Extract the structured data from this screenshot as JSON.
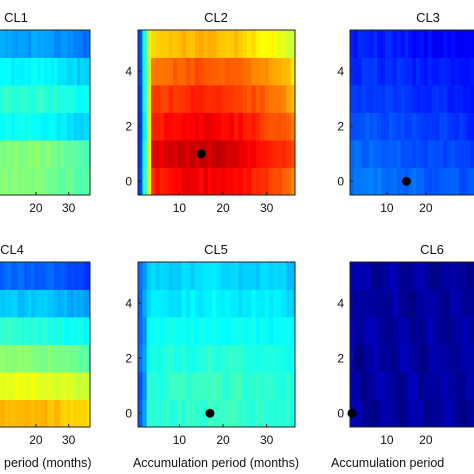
{
  "chart_data": [
    {
      "type": "heatmap",
      "title": "CL1",
      "xlabel": "",
      "x_ticks": [
        20,
        30
      ],
      "y_ticks": [],
      "marker": null
    },
    {
      "type": "heatmap",
      "title": "CL2",
      "xlabel": "",
      "x_ticks": [
        10,
        20,
        30
      ],
      "y_ticks": [
        0,
        2,
        4
      ],
      "marker": {
        "x": 15,
        "y": 1
      }
    },
    {
      "type": "heatmap",
      "title": "CL3",
      "xlabel": "",
      "x_ticks": [
        10,
        20
      ],
      "y_ticks": [
        0,
        2,
        4
      ],
      "marker": {
        "x": 15,
        "y": 0
      }
    },
    {
      "type": "heatmap",
      "title": "CL4",
      "xlabel": "period (months)",
      "x_ticks": [
        20,
        30
      ],
      "y_ticks": [],
      "marker": null
    },
    {
      "type": "heatmap",
      "title": "CL5",
      "xlabel": "Accumulation period (months)",
      "x_ticks": [
        10,
        20,
        30
      ],
      "y_ticks": [
        0,
        2,
        4
      ],
      "marker": {
        "x": 17,
        "y": 0
      }
    },
    {
      "type": "heatmap",
      "title": "CL6",
      "xlabel": "Accumulation period",
      "x_ticks": [
        10,
        20
      ],
      "y_ticks": [
        0,
        2,
        4
      ],
      "marker": {
        "x": 1,
        "y": 0
      }
    }
  ],
  "axes": {
    "x_range": [
      1,
      36
    ],
    "y_range": [
      -0.5,
      5.5
    ],
    "colormap": "jet"
  }
}
